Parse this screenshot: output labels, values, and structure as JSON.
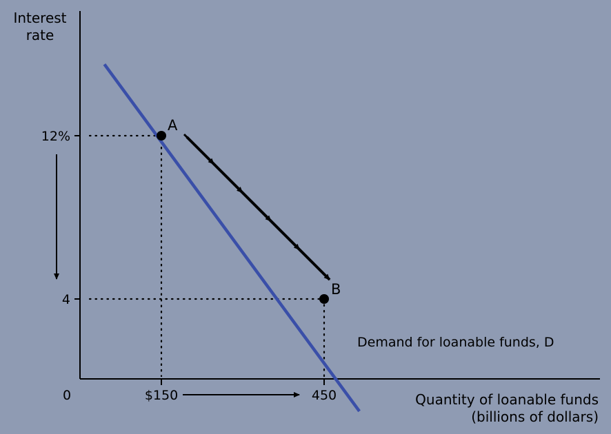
{
  "colors": {
    "background": "#8f9bb3",
    "demand_line": "#3a4fa8",
    "ink": "#000000"
  },
  "chart_data": {
    "type": "line",
    "title": "",
    "ylabel": "Interest\nrate",
    "xlabel": "Quantity of loanable funds\n(billions of dollars)",
    "origin_label": "0",
    "xlim": [
      0,
      500
    ],
    "ylim": [
      0,
      16
    ],
    "x_ticks": [
      {
        "value": 150,
        "label": "$150"
      },
      {
        "value": 450,
        "label": "450"
      }
    ],
    "y_ticks": [
      {
        "value": 12,
        "label": "12%"
      },
      {
        "value": 4,
        "label": "4"
      }
    ],
    "series": [
      {
        "name": "Demand for loanable funds, D",
        "points": [
          [
            45,
            15.5
          ],
          [
            515,
            -1.5
          ]
        ]
      }
    ],
    "points": [
      {
        "label": "A",
        "x": 150,
        "y": 12
      },
      {
        "label": "B",
        "x": 450,
        "y": 4
      }
    ],
    "annotations": [
      {
        "type": "movement-arrow",
        "from": "A",
        "to": "B",
        "description": "movement along demand curve"
      },
      {
        "type": "axis-arrow",
        "axis": "y",
        "direction": "down"
      },
      {
        "type": "axis-arrow",
        "axis": "x",
        "direction": "right"
      }
    ],
    "grid": false
  }
}
